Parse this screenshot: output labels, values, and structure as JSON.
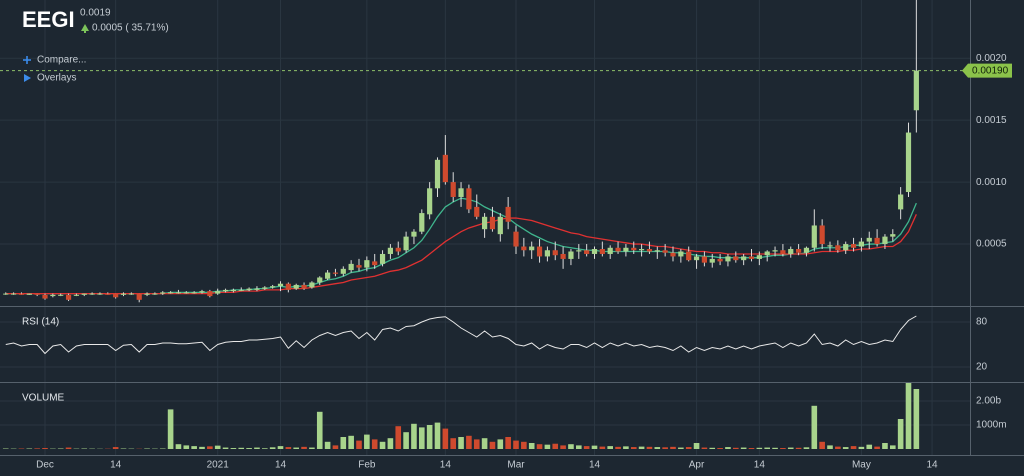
{
  "header": {
    "symbol": "EEGI",
    "price": "0.0019",
    "change": "0.0005 ( 35.71%)",
    "compare": "Compare...",
    "overlays": "Overlays"
  },
  "chart_data": [
    {
      "type": "candlestick",
      "categories": [
        null,
        null,
        null,
        null,
        null,
        "Dec",
        null,
        null,
        null,
        null,
        null,
        null,
        null,
        null,
        "14",
        null,
        null,
        null,
        null,
        null,
        null,
        null,
        null,
        null,
        null,
        null,
        null,
        "2021",
        null,
        null,
        null,
        null,
        null,
        null,
        null,
        "14",
        null,
        null,
        null,
        null,
        null,
        null,
        null,
        null,
        null,
        null,
        "Feb",
        null,
        null,
        null,
        null,
        null,
        null,
        null,
        null,
        null,
        "14",
        null,
        null,
        null,
        null,
        null,
        null,
        null,
        null,
        "Mar",
        null,
        null,
        null,
        null,
        null,
        null,
        null,
        null,
        null,
        "14",
        null,
        null,
        null,
        null,
        null,
        null,
        null,
        null,
        null,
        null,
        null,
        null,
        "Apr",
        null,
        null,
        null,
        null,
        null,
        null,
        null,
        "14",
        null,
        null,
        null,
        null,
        null,
        null,
        null,
        null,
        null,
        null,
        null,
        null,
        "May",
        null,
        null,
        null,
        null,
        null,
        null,
        null,
        null,
        "14"
      ],
      "open": [
        0.0001,
        0.0001,
        0.0001,
        9e-05,
        0.0001,
        9e-05,
        8e-05,
        9e-05,
        9e-05,
        9e-05,
        9e-05,
        0.0001,
        0.0001,
        0.0001,
        0.0001,
        9e-05,
        0.0001,
        0.0001,
        9e-05,
        0.0001,
        0.0001,
        0.00011,
        0.00011,
        0.00011,
        0.00011,
        0.00011,
        0.00012,
        0.0001,
        0.00012,
        0.00012,
        0.00013,
        0.00013,
        0.00013,
        0.00014,
        0.00015,
        0.00016,
        0.00018,
        0.00014,
        0.00017,
        0.00015,
        0.00019,
        0.00022,
        0.00027,
        0.00026,
        0.00029,
        0.00033,
        0.00031,
        0.00036,
        0.00034,
        0.00042,
        0.00047,
        0.00045,
        0.00056,
        0.0006,
        0.00074,
        0.00095,
        0.00122,
        0.001,
        0.00088,
        0.00095,
        0.0008,
        0.00062,
        0.00072,
        0.00058,
        0.0008,
        0.0006,
        0.00048,
        0.00045,
        0.00048,
        0.0004,
        0.00045,
        0.00042,
        0.00038,
        0.00044,
        0.00045,
        0.00042,
        0.00046,
        0.00042,
        0.00047,
        0.00044,
        0.00047,
        0.00045,
        0.00046,
        0.00044,
        0.00045,
        0.00043,
        0.0004,
        0.00044,
        0.00037,
        0.0004,
        0.00035,
        0.00038,
        0.00036,
        0.0004,
        0.00037,
        0.0004,
        0.00038,
        0.00041,
        0.00044,
        0.00045,
        0.00042,
        0.00046,
        0.00043,
        0.00047,
        0.00065,
        0.00048,
        0.00049,
        0.00045,
        0.0005,
        0.00048,
        0.00052,
        0.00055,
        0.0005,
        0.00056,
        0.00078,
        0.00092,
        0.00158,
        null,
        null
      ],
      "high": [
        0.00011,
        0.00011,
        0.00011,
        0.0001,
        0.0001,
        0.0001,
        0.0001,
        0.0001,
        0.0001,
        0.0001,
        0.0001,
        0.00011,
        0.00011,
        0.00011,
        0.0001,
        0.00011,
        0.00011,
        0.0001,
        0.00011,
        0.00011,
        0.00012,
        0.00012,
        0.00013,
        0.00012,
        0.00012,
        0.00013,
        0.00013,
        0.00014,
        0.00014,
        0.00014,
        0.00015,
        0.00015,
        0.00016,
        0.00016,
        0.00017,
        0.0002,
        0.00019,
        0.00018,
        0.00019,
        0.0002,
        0.00024,
        0.00029,
        0.0003,
        0.00032,
        0.00037,
        0.00038,
        0.0004,
        0.00042,
        0.00045,
        0.0005,
        0.00052,
        0.0006,
        0.00062,
        0.00078,
        0.001,
        0.0012,
        0.00138,
        0.00108,
        0.001,
        0.00098,
        0.0009,
        0.00075,
        0.0008,
        0.00075,
        0.00088,
        0.00065,
        0.00055,
        0.00052,
        0.00054,
        0.00048,
        0.00052,
        0.00048,
        0.00046,
        0.0005,
        0.0005,
        0.00048,
        0.00052,
        0.00049,
        0.00052,
        0.0005,
        0.00052,
        0.0005,
        0.00052,
        0.00048,
        0.0005,
        0.00048,
        0.00046,
        0.00048,
        0.00042,
        0.00044,
        0.00042,
        0.00042,
        0.00042,
        0.00044,
        0.00042,
        0.00046,
        0.00044,
        0.00045,
        0.00048,
        0.0005,
        0.00048,
        0.0005,
        0.00048,
        0.00078,
        0.0007,
        0.00052,
        0.00053,
        0.00052,
        0.00055,
        0.00055,
        0.0006,
        0.00062,
        0.00058,
        0.00062,
        0.00096,
        0.00148,
        0.0025,
        null,
        null
      ],
      "low": [
        9e-05,
        9e-05,
        9e-05,
        9e-05,
        8e-05,
        5e-05,
        7e-05,
        8e-05,
        4e-05,
        8e-05,
        8e-05,
        9e-05,
        9e-05,
        9e-05,
        6e-05,
        8e-05,
        9e-05,
        3e-05,
        8e-05,
        9e-05,
        9e-05,
        0.0001,
        0.0001,
        0.0001,
        0.0001,
        0.0001,
        7e-05,
        9e-05,
        0.00011,
        0.00011,
        0.00012,
        0.00012,
        0.00012,
        0.00013,
        0.00014,
        0.00012,
        0.00011,
        0.00013,
        0.00013,
        0.00014,
        0.00017,
        0.00021,
        0.00024,
        0.00024,
        0.00027,
        0.00028,
        0.00028,
        0.0003,
        0.00032,
        0.00038,
        0.00041,
        0.00043,
        0.0005,
        0.00058,
        0.0007,
        0.00088,
        0.00098,
        0.00084,
        0.0008,
        0.00075,
        0.0007,
        0.00055,
        0.0006,
        0.00052,
        0.00062,
        0.00042,
        0.0004,
        0.00038,
        0.00035,
        0.00036,
        0.00037,
        0.0003,
        0.00033,
        0.00038,
        0.0004,
        0.00038,
        0.0004,
        0.00038,
        0.00042,
        0.0004,
        0.00042,
        0.0004,
        0.00042,
        0.00038,
        0.0004,
        0.00036,
        0.00035,
        0.00036,
        0.0003,
        0.00032,
        0.00031,
        0.00033,
        0.00032,
        0.00035,
        0.00033,
        0.00036,
        0.00033,
        0.00036,
        0.0004,
        0.0004,
        0.00039,
        0.00041,
        0.0004,
        0.00044,
        0.00046,
        0.00044,
        0.00043,
        0.00042,
        0.00044,
        0.00044,
        0.00046,
        0.00048,
        0.00046,
        0.00052,
        0.0007,
        0.00088,
        0.0014,
        null,
        null
      ],
      "close": [
        0.0001,
        0.0001,
        9e-05,
        0.0001,
        9e-05,
        6e-05,
        9e-05,
        9e-05,
        5e-05,
        9e-05,
        0.0001,
        0.0001,
        0.0001,
        9e-05,
        7e-05,
        0.0001,
        0.0001,
        5e-05,
        0.0001,
        0.0001,
        0.00011,
        0.00011,
        0.00011,
        0.00011,
        0.00011,
        0.00012,
        8e-05,
        0.00012,
        0.00013,
        0.00013,
        0.00013,
        0.00014,
        0.00014,
        0.00015,
        0.00016,
        0.00018,
        0.00013,
        0.00017,
        0.00014,
        0.00019,
        0.00023,
        0.00027,
        0.00026,
        0.0003,
        0.00034,
        0.00031,
        0.00037,
        0.00033,
        0.00042,
        0.00047,
        0.00044,
        0.00056,
        0.0006,
        0.00075,
        0.00095,
        0.00118,
        0.001,
        0.00088,
        0.00095,
        0.00078,
        0.00072,
        0.00072,
        0.00062,
        0.00072,
        0.00068,
        0.00048,
        0.00045,
        0.00048,
        0.0004,
        0.00045,
        0.00041,
        0.00038,
        0.00044,
        0.00045,
        0.00042,
        0.00046,
        0.00042,
        0.00047,
        0.00044,
        0.00047,
        0.00045,
        0.00046,
        0.00044,
        0.00045,
        0.00043,
        0.0004,
        0.00044,
        0.00037,
        0.0004,
        0.00035,
        0.00038,
        0.00036,
        0.0004,
        0.00037,
        0.0004,
        0.00038,
        0.00041,
        0.00044,
        0.00045,
        0.00042,
        0.00046,
        0.00043,
        0.00047,
        0.00065,
        0.0005,
        0.00049,
        0.00045,
        0.0005,
        0.00047,
        0.00052,
        0.00055,
        0.0005,
        0.00056,
        0.00058,
        0.0009,
        0.0014,
        0.0019,
        null,
        null
      ],
      "up_color": "#a8d48c",
      "down_color": "#cf4a2e",
      "wick_color": "#dcdcdc",
      "overlays": [
        {
          "color": "#3fb58d",
          "values": [
            0.0001,
            0.0001,
            0.0001,
            0.0001,
            0.0001,
            0.0001,
            0.0001,
            0.0001,
            0.0001,
            0.0001,
            0.0001,
            0.0001,
            0.0001,
            0.0001,
            0.0001,
            0.0001,
            0.0001,
            0.0001,
            0.0001,
            0.0001,
            0.0001,
            0.00011,
            0.00011,
            0.00011,
            0.00011,
            0.00011,
            0.00011,
            0.00012,
            0.00012,
            0.00013,
            0.00013,
            0.00013,
            0.00014,
            0.00014,
            0.00015,
            0.00016,
            0.00015,
            0.00016,
            0.00016,
            0.00017,
            0.00019,
            0.00021,
            0.00022,
            0.00024,
            0.00027,
            0.00028,
            0.0003,
            0.00031,
            0.00034,
            0.00037,
            0.00039,
            0.00043,
            0.00047,
            0.00053,
            0.00062,
            0.00072,
            0.0008,
            0.00084,
            0.00087,
            0.00086,
            0.00084,
            0.0008,
            0.00077,
            0.00074,
            0.00071,
            0.00066,
            0.00062,
            0.00058,
            0.00055,
            0.00052,
            0.0005,
            0.00048,
            0.00047,
            0.00046,
            0.00045,
            0.00045,
            0.00044,
            0.00044,
            0.00044,
            0.00044,
            0.00044,
            0.00044,
            0.00044,
            0.00044,
            0.00044,
            0.00043,
            0.00043,
            0.00042,
            0.00041,
            0.0004,
            0.0004,
            0.00039,
            0.00039,
            0.00039,
            0.00039,
            0.00039,
            0.00039,
            0.0004,
            0.00041,
            0.00041,
            0.00042,
            0.00042,
            0.00043,
            0.00046,
            0.00047,
            0.00047,
            0.00047,
            0.00048,
            0.00049,
            0.00049,
            0.0005,
            0.0005,
            0.00051,
            0.00052,
            0.00058,
            0.00068,
            0.00083,
            null,
            null
          ]
        },
        {
          "color": "#e03131",
          "values": [
            0.0001,
            0.0001,
            0.0001,
            0.0001,
            0.0001,
            0.0001,
            0.0001,
            0.0001,
            0.0001,
            0.0001,
            0.0001,
            0.0001,
            0.0001,
            0.0001,
            0.0001,
            0.0001,
            0.0001,
            0.0001,
            0.0001,
            0.0001,
            0.0001,
            0.0001,
            0.0001,
            0.0001,
            0.0001,
            0.0001,
            0.0001,
            0.00011,
            0.00011,
            0.00011,
            0.00012,
            0.00012,
            0.00012,
            0.00013,
            0.00013,
            0.00013,
            0.00014,
            0.00014,
            0.00014,
            0.00015,
            0.00016,
            0.00017,
            0.00018,
            0.00019,
            0.00021,
            0.00022,
            0.00023,
            0.00024,
            0.00026,
            0.00028,
            0.00029,
            0.00031,
            0.00034,
            0.00037,
            0.00042,
            0.00047,
            0.00052,
            0.00056,
            0.0006,
            0.00063,
            0.00065,
            0.00067,
            0.00068,
            0.0007,
            0.00071,
            0.00071,
            0.0007,
            0.00069,
            0.00067,
            0.00065,
            0.00063,
            0.00061,
            0.00059,
            0.00058,
            0.00056,
            0.00055,
            0.00054,
            0.00053,
            0.00052,
            0.00051,
            0.0005,
            0.0005,
            0.00049,
            0.00048,
            0.00048,
            0.00047,
            0.00046,
            0.00045,
            0.00044,
            0.00044,
            0.00043,
            0.00043,
            0.00042,
            0.00042,
            0.00042,
            0.00042,
            0.00042,
            0.00042,
            0.00042,
            0.00042,
            0.00042,
            0.00042,
            0.00042,
            0.00043,
            0.00044,
            0.00044,
            0.00044,
            0.00045,
            0.00045,
            0.00046,
            0.00046,
            0.00047,
            0.00048,
            0.00048,
            0.00052,
            0.0006,
            0.00074,
            null,
            null
          ]
        }
      ],
      "ylim": [
        0,
        0.00247
      ],
      "yticks": [
        0.0005,
        {
          "value": 0.001,
          "label": "0.0010"
        },
        0.0015,
        {
          "value": 0.002,
          "label": "0.0020"
        }
      ],
      "grid": true,
      "last_price": {
        "value": 0.0019,
        "label": "0.00190"
      }
    },
    {
      "type": "line",
      "title": "RSI (14)",
      "color": "#e8e8e8",
      "values": [
        50,
        52,
        48,
        50,
        50,
        38,
        48,
        50,
        40,
        48,
        50,
        50,
        50,
        50,
        42,
        49,
        50,
        40,
        50,
        50,
        52,
        52,
        51,
        51,
        52,
        53,
        42,
        50,
        53,
        54,
        54,
        56,
        56,
        57,
        58,
        60,
        45,
        55,
        46,
        56,
        62,
        66,
        62,
        66,
        68,
        58,
        66,
        56,
        70,
        72,
        68,
        74,
        75,
        80,
        84,
        86,
        87,
        80,
        72,
        66,
        60,
        68,
        60,
        62,
        58,
        50,
        48,
        52,
        44,
        50,
        46,
        44,
        50,
        50,
        46,
        52,
        46,
        52,
        48,
        52,
        48,
        50,
        46,
        48,
        46,
        42,
        48,
        40,
        46,
        42,
        46,
        44,
        48,
        44,
        48,
        44,
        48,
        50,
        52,
        46,
        52,
        48,
        52,
        64,
        50,
        52,
        48,
        56,
        50,
        54,
        50,
        52,
        56,
        54,
        70,
        82,
        88,
        null,
        null
      ],
      "ylim": [
        0,
        100
      ],
      "yticks": [
        20,
        80
      ],
      "grid": true
    },
    {
      "type": "bar",
      "title": "VOLUME",
      "values": [
        20000000,
        15000000,
        18000000,
        20000000,
        25000000,
        40000000,
        15000000,
        20000000,
        60000000,
        15000000,
        20000000,
        15000000,
        10000000,
        12000000,
        80000000,
        20000000,
        15000000,
        10000000,
        20000000,
        15000000,
        20000000,
        1650000000,
        200000000,
        150000000,
        120000000,
        90000000,
        110000000,
        140000000,
        60000000,
        40000000,
        50000000,
        40000000,
        60000000,
        30000000,
        70000000,
        120000000,
        80000000,
        60000000,
        90000000,
        60000000,
        1550000000,
        300000000,
        150000000,
        500000000,
        550000000,
        350000000,
        600000000,
        400000000,
        300000000,
        450000000,
        950000000,
        700000000,
        1050000000,
        900000000,
        1000000000,
        1100000000,
        850000000,
        450000000,
        500000000,
        550000000,
        400000000,
        450000000,
        300000000,
        400000000,
        500000000,
        350000000,
        300000000,
        250000000,
        200000000,
        180000000,
        220000000,
        150000000,
        200000000,
        150000000,
        120000000,
        140000000,
        100000000,
        120000000,
        90000000,
        110000000,
        80000000,
        100000000,
        90000000,
        80000000,
        70000000,
        90000000,
        60000000,
        80000000,
        250000000,
        60000000,
        50000000,
        40000000,
        80000000,
        50000000,
        60000000,
        40000000,
        50000000,
        60000000,
        50000000,
        40000000,
        60000000,
        50000000,
        70000000,
        1800000000,
        300000000,
        150000000,
        100000000,
        80000000,
        120000000,
        90000000,
        180000000,
        100000000,
        250000000,
        150000000,
        1250000000,
        2750000000,
        2500000000,
        null,
        null
      ],
      "ylim": [
        0,
        2750000000
      ],
      "yticks": [
        {
          "value": 1000000000,
          "label": "1000m"
        },
        {
          "value": 2000000000,
          "label": "2.00b"
        }
      ],
      "grid": true
    }
  ]
}
